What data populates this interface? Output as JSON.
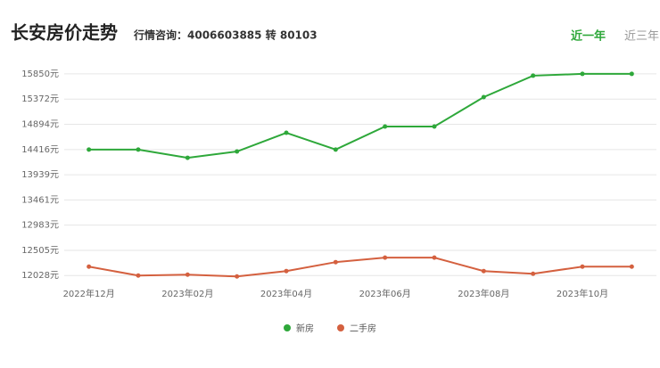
{
  "chart_data": {
    "type": "line",
    "title": "长安房价走势",
    "subtitle": "行情咨询：4006603885 转 80103",
    "categories": [
      "2022年12月",
      null,
      "2023年02月",
      null,
      "2023年04月",
      null,
      "2023年06月",
      null,
      "2023年08月",
      null,
      "2023年10月",
      null
    ],
    "series": [
      {
        "name": "新房",
        "color": "#2ea83a",
        "values": [
          14416,
          14416,
          14260,
          14379,
          14734,
          14416,
          14852,
          14852,
          15410,
          15816,
          15850,
          15850
        ]
      },
      {
        "name": "二手房",
        "color": "#d4603f",
        "values": [
          12197,
          12028,
          12045,
          12011,
          12113,
          12282,
          12367,
          12367,
          12113,
          12062,
          12197,
          12197
        ]
      }
    ],
    "ylim": [
      11880,
      15950
    ],
    "yticks": [
      {
        "value": 12028,
        "label": "12028元"
      },
      {
        "value": 12505,
        "label": "12505元"
      },
      {
        "value": 12983,
        "label": "12983元"
      },
      {
        "value": 13461,
        "label": "13461元"
      },
      {
        "value": 13939,
        "label": "13939元"
      },
      {
        "value": 14416,
        "label": "14416元"
      },
      {
        "value": 14894,
        "label": "14894元"
      },
      {
        "value": 15372,
        "label": "15372元"
      },
      {
        "value": 15850,
        "label": "15850元"
      }
    ],
    "grid": true,
    "legend": "bottom"
  },
  "tabs": [
    "近一年",
    "近三年"
  ]
}
